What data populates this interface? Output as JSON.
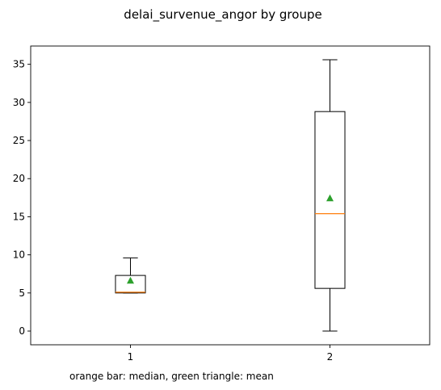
{
  "chart_data": {
    "type": "box",
    "title": "delai_survenue_angor by groupe",
    "xlabel": "",
    "ylabel": "",
    "categories": [
      "1",
      "2"
    ],
    "boxes": [
      {
        "category": "1",
        "whislo": 5.0,
        "q1": 5.0,
        "med": 5.1,
        "q3": 7.3,
        "whishi": 9.6,
        "mean": 6.6
      },
      {
        "category": "2",
        "whislo": 0.0,
        "q1": 5.6,
        "med": 15.4,
        "q3": 28.8,
        "whishi": 35.6,
        "mean": 17.4
      }
    ],
    "ylim": [
      -1.8,
      37.4
    ],
    "yticks": [
      0,
      5,
      10,
      15,
      20,
      25,
      30,
      35
    ],
    "note": "orange bar: median, green triangle: mean",
    "colors": {
      "box": "#000000",
      "median": "#ff7f0e",
      "mean": "#2ca02c"
    },
    "grid": false,
    "legend": "none"
  }
}
